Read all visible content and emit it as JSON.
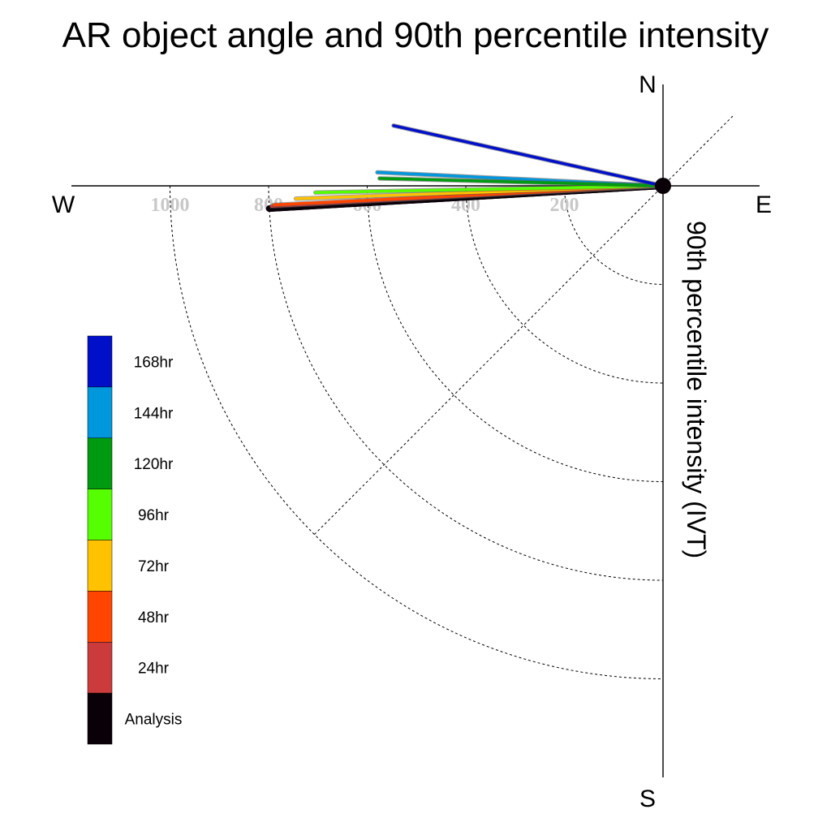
{
  "chart_data": {
    "type": "polar-vector",
    "title": "AR object angle and 90th percentile intensity",
    "ylabel": "90th percentile intensity (IVT)",
    "compass": {
      "north": "N",
      "south": "S",
      "east": "E",
      "west": "W"
    },
    "radial_ticks": [
      {
        "value": 200,
        "label": "200"
      },
      {
        "value": 400,
        "label": "400"
      },
      {
        "value": 600,
        "label": "600"
      },
      {
        "value": 800,
        "label": "800"
      },
      {
        "value": 1000,
        "label": "1000"
      }
    ],
    "grid": true,
    "legend_placement": "lower-left",
    "series": [
      {
        "name": "Analysis",
        "color": "#0a0008",
        "magnitude": 800,
        "direction_deg": 266.7
      },
      {
        "name": "24hr",
        "color": "#cc3b3b",
        "magnitude": 795,
        "direction_deg": 267.0
      },
      {
        "name": "48hr",
        "color": "#ff4500",
        "magnitude": 790,
        "direction_deg": 267.2
      },
      {
        "name": "72hr",
        "color": "#ffc200",
        "magnitude": 745,
        "direction_deg": 268.0
      },
      {
        "name": "96hr",
        "color": "#55ff00",
        "magnitude": 705,
        "direction_deg": 268.9
      },
      {
        "name": "120hr",
        "color": "#009a10",
        "magnitude": 575,
        "direction_deg": 271.5
      },
      {
        "name": "144hr",
        "color": "#0097dd",
        "magnitude": 580,
        "direction_deg": 272.7
      },
      {
        "name": "168hr",
        "color": "#0010c8",
        "magnitude": 560,
        "direction_deg": 282.6
      }
    ],
    "legend_order": [
      "168hr",
      "144hr",
      "120hr",
      "96hr",
      "72hr",
      "48hr",
      "24hr",
      "Analysis"
    ]
  }
}
